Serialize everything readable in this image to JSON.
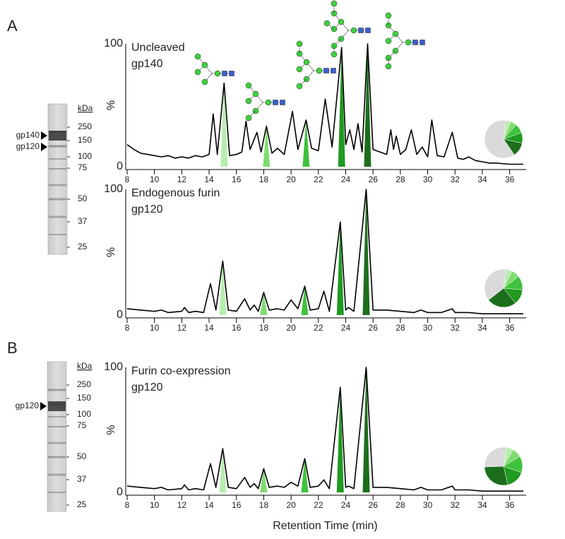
{
  "panels": [
    "A",
    "B"
  ],
  "gels": [
    {
      "unit": "kDa",
      "markers": [
        250,
        150,
        100,
        75,
        50,
        37,
        25
      ],
      "arrows": [
        "gp140",
        "gp120"
      ]
    },
    {
      "unit": "kDa",
      "markers": [
        250,
        150,
        100,
        75,
        50,
        37,
        25
      ],
      "arrows": [
        "gp120"
      ]
    }
  ],
  "chart_data": [
    {
      "type": "line",
      "title": "Uncleaved",
      "subtitle": "gp140",
      "y_label": "%",
      "x": [
        8,
        8.5,
        9,
        9.5,
        10,
        10.5,
        11,
        11.5,
        12,
        12.5,
        13,
        13.5,
        14,
        14.3,
        14.6,
        15.1,
        15.5,
        16,
        16.4,
        16.7,
        17,
        17.5,
        17.8,
        18.2,
        18.6,
        19,
        19.5,
        20.1,
        20.5,
        21.1,
        21.5,
        22,
        22.5,
        23,
        23.7,
        24,
        24.3,
        24.6,
        24.9,
        25.2,
        25.6,
        26,
        26.5,
        27,
        27.3,
        27.5,
        27.7,
        28,
        28.4,
        28.8,
        29.2,
        29.6,
        30,
        30.3,
        30.7,
        31.2,
        31.8,
        32.2,
        32.6,
        33,
        33.5,
        34,
        34.5,
        35,
        36,
        37
      ],
      "values": [
        18,
        14,
        11,
        10,
        9,
        8,
        9,
        7,
        8,
        7,
        9,
        8,
        10,
        43,
        10,
        68,
        9,
        10,
        12,
        37,
        14,
        28,
        12,
        33,
        11,
        15,
        10,
        45,
        14,
        38,
        15,
        13,
        55,
        16,
        97,
        18,
        30,
        14,
        35,
        12,
        100,
        14,
        12,
        10,
        30,
        14,
        25,
        10,
        14,
        30,
        10,
        16,
        8,
        38,
        9,
        8,
        28,
        7,
        6,
        8,
        5,
        4,
        3,
        3,
        2,
        2
      ],
      "color": "#000000",
      "highlights": {
        "x": [
          15.1,
          18.2,
          21.1,
          23.7,
          25.6
        ],
        "colors": [
          "#b6eeae",
          "#7fdc70",
          "#3fc23c",
          "#209a20",
          "#1c6e1c"
        ]
      },
      "pie": {
        "values": [
          4,
          5,
          8,
          9,
          12,
          62
        ],
        "colors": [
          "#b6eeae",
          "#7fdc70",
          "#3fc23c",
          "#209a20",
          "#1c6e1c",
          "#dadada"
        ]
      },
      "xlim": [
        8,
        37
      ],
      "xticks": [
        8,
        10,
        12,
        14,
        16,
        18,
        20,
        22,
        24,
        26,
        28,
        30,
        32,
        34,
        36
      ],
      "ylim": [
        0,
        100
      ],
      "yticks": [
        0,
        100
      ]
    },
    {
      "type": "line",
      "title": "Endogenous furin",
      "subtitle": "gp120",
      "y_label": "%",
      "x": [
        8,
        9,
        10,
        10.5,
        11,
        12,
        12.2,
        12.5,
        13,
        13.6,
        14.1,
        14.5,
        15.0,
        15.4,
        16,
        16.6,
        17,
        17.3,
        17.6,
        18.0,
        18.4,
        19,
        19.5,
        20.0,
        20.5,
        21.0,
        21.4,
        22,
        22.4,
        22.8,
        23.6,
        24,
        24.2,
        24.6,
        25.5,
        26,
        27,
        28,
        29,
        29.5,
        30,
        31,
        31.8,
        32,
        33,
        34,
        35,
        37
      ],
      "values": [
        5,
        4,
        3,
        4,
        2,
        3,
        6,
        2,
        3,
        2,
        25,
        4,
        43,
        4,
        3,
        13,
        4,
        8,
        3,
        18,
        4,
        5,
        4,
        12,
        5,
        23,
        4,
        5,
        19,
        3,
        74,
        4,
        6,
        3,
        100,
        4,
        4,
        3,
        2,
        4,
        2,
        2,
        5,
        2,
        2,
        1,
        1,
        1
      ],
      "color": "#000000",
      "highlights": {
        "x": [
          15.0,
          18.0,
          21.0,
          23.6,
          25.5
        ],
        "colors": [
          "#b6eeae",
          "#7fdc70",
          "#3fc23c",
          "#209a20",
          "#1c6e1c"
        ]
      },
      "pie": {
        "values": [
          5,
          7,
          12,
          13,
          25,
          38
        ],
        "colors": [
          "#b6eeae",
          "#7fdc70",
          "#3fc23c",
          "#209a20",
          "#1c6e1c",
          "#dadada"
        ]
      },
      "xlim": [
        8,
        37
      ],
      "xticks": [
        8,
        10,
        12,
        14,
        16,
        18,
        20,
        22,
        24,
        26,
        28,
        30,
        32,
        34,
        36
      ],
      "ylim": [
        0,
        100
      ],
      "yticks": [
        0,
        100
      ]
    },
    {
      "type": "line",
      "title": "Furin co-expression",
      "subtitle": "gp120",
      "y_label": "%",
      "x_label": "Retention Time (min)",
      "x": [
        8,
        9,
        10,
        10.5,
        11,
        12,
        12.2,
        12.5,
        13,
        13.6,
        14.1,
        14.5,
        15.0,
        15.4,
        16,
        16.6,
        17,
        17.3,
        17.6,
        18.0,
        18.4,
        19,
        19.5,
        20.0,
        20.5,
        21.0,
        21.4,
        22,
        22.4,
        22.8,
        23.6,
        24,
        24.2,
        24.6,
        25.5,
        26,
        27,
        28,
        29,
        29.5,
        30,
        31,
        31.8,
        32,
        33,
        34,
        35,
        37
      ],
      "values": [
        5,
        4,
        3,
        4,
        2,
        3,
        6,
        2,
        3,
        2,
        23,
        4,
        35,
        4,
        3,
        12,
        4,
        7,
        3,
        19,
        4,
        5,
        4,
        8,
        5,
        27,
        4,
        5,
        10,
        3,
        84,
        4,
        5,
        3,
        100,
        4,
        4,
        3,
        2,
        4,
        2,
        2,
        5,
        2,
        2,
        1,
        1,
        1
      ],
      "color": "#000000",
      "highlights": {
        "x": [
          15.0,
          18.0,
          21.0,
          23.6,
          25.5
        ],
        "colors": [
          "#b6eeae",
          "#7fdc70",
          "#3fc23c",
          "#209a20",
          "#1c6e1c"
        ]
      },
      "pie": {
        "values": [
          6,
          8,
          14,
          16,
          28,
          28
        ],
        "colors": [
          "#b6eeae",
          "#7fdc70",
          "#3fc23c",
          "#209a20",
          "#1c6e1c",
          "#dadada"
        ]
      },
      "xlim": [
        8,
        37
      ],
      "xticks": [
        8,
        10,
        12,
        14,
        16,
        18,
        20,
        22,
        24,
        26,
        28,
        30,
        32,
        34,
        36
      ],
      "ylim": [
        0,
        100
      ],
      "yticks": [
        0,
        100
      ]
    }
  ]
}
